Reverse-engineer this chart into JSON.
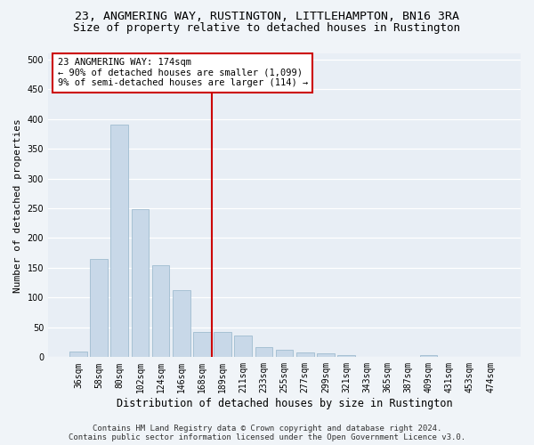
{
  "title1": "23, ANGMERING WAY, RUSTINGTON, LITTLEHAMPTON, BN16 3RA",
  "title2": "Size of property relative to detached houses in Rustington",
  "xlabel": "Distribution of detached houses by size in Rustington",
  "ylabel": "Number of detached properties",
  "categories": [
    "36sqm",
    "58sqm",
    "80sqm",
    "102sqm",
    "124sqm",
    "146sqm",
    "168sqm",
    "189sqm",
    "211sqm",
    "233sqm",
    "255sqm",
    "277sqm",
    "299sqm",
    "321sqm",
    "343sqm",
    "365sqm",
    "387sqm",
    "409sqm",
    "431sqm",
    "453sqm",
    "474sqm"
  ],
  "values": [
    10,
    165,
    390,
    248,
    155,
    113,
    42,
    42,
    37,
    17,
    13,
    8,
    6,
    3,
    1,
    0,
    0,
    3,
    0,
    1,
    1
  ],
  "bar_color": "#c8d8e8",
  "bar_edgecolor": "#a0bcd0",
  "vline_color": "#cc0000",
  "vline_x": 6.5,
  "annotation_text": "23 ANGMERING WAY: 174sqm\n← 90% of detached houses are smaller (1,099)\n9% of semi-detached houses are larger (114) →",
  "annotation_box_facecolor": "#ffffff",
  "annotation_box_edgecolor": "#cc0000",
  "ylim": [
    0,
    510
  ],
  "yticks": [
    0,
    50,
    100,
    150,
    200,
    250,
    300,
    350,
    400,
    450,
    500
  ],
  "plot_bg_color": "#e8eef5",
  "fig_bg_color": "#f0f4f8",
  "grid_color": "#ffffff",
  "title1_fontsize": 9.5,
  "title2_fontsize": 9,
  "xlabel_fontsize": 8.5,
  "ylabel_fontsize": 8,
  "tick_fontsize": 7,
  "annotation_fontsize": 7.5,
  "footer_fontsize": 6.5,
  "footer": "Contains HM Land Registry data © Crown copyright and database right 2024.\nContains public sector information licensed under the Open Government Licence v3.0."
}
